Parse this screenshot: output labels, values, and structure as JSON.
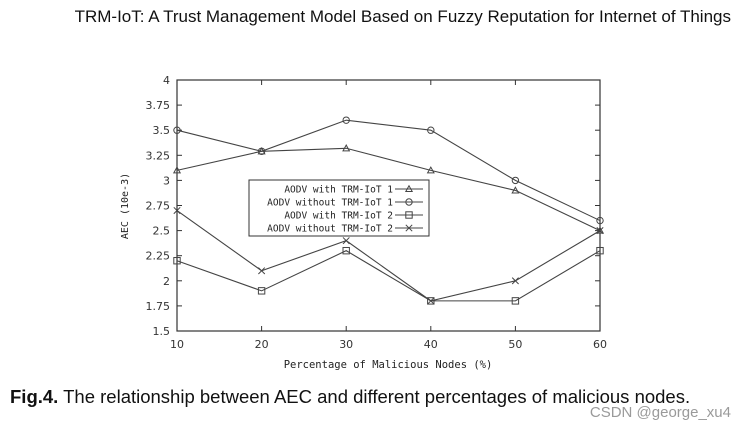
{
  "header": {
    "title": "TRM-IoT: A Trust Management Model Based on Fuzzy Reputation for Internet of Things"
  },
  "caption": {
    "label": "Fig.4.",
    "text": " The relationship between AEC and different percentages of malicious nodes."
  },
  "watermark": "CSDN @george_xu4",
  "chart_data": {
    "type": "line",
    "title": "",
    "xlabel": "Percentage of Malicious Nodes (%)",
    "ylabel": "AEC (10e-3)",
    "x": [
      10,
      20,
      30,
      40,
      50,
      60
    ],
    "xlim": [
      10,
      60
    ],
    "ylim": [
      1.5,
      4
    ],
    "xticks": [
      "10",
      "20",
      "30",
      "40",
      "50",
      "60"
    ],
    "yticks": [
      "1.5",
      "1.75",
      "2",
      "2.25",
      "2.5",
      "2.75",
      "3",
      "3.25",
      "3.5",
      "3.75",
      "4"
    ],
    "grid": false,
    "legend_position": "inside-center-left",
    "series": [
      {
        "name": "AODV with TRM-IoT 1",
        "marker": "triangle",
        "values": [
          3.1,
          3.29,
          3.32,
          3.1,
          2.9,
          2.5
        ]
      },
      {
        "name": "AODV without TRM-IoT 1",
        "marker": "circle",
        "values": [
          3.5,
          3.29,
          3.6,
          3.5,
          3.0,
          2.6
        ]
      },
      {
        "name": "AODV with TRM-IoT 2",
        "marker": "square",
        "values": [
          2.2,
          1.9,
          2.3,
          1.8,
          1.8,
          2.3
        ]
      },
      {
        "name": "AODV without TRM-IoT 2",
        "marker": "cross",
        "values": [
          2.7,
          2.1,
          2.4,
          1.8,
          2.0,
          2.5
        ]
      }
    ],
    "line_color": "#444444"
  }
}
